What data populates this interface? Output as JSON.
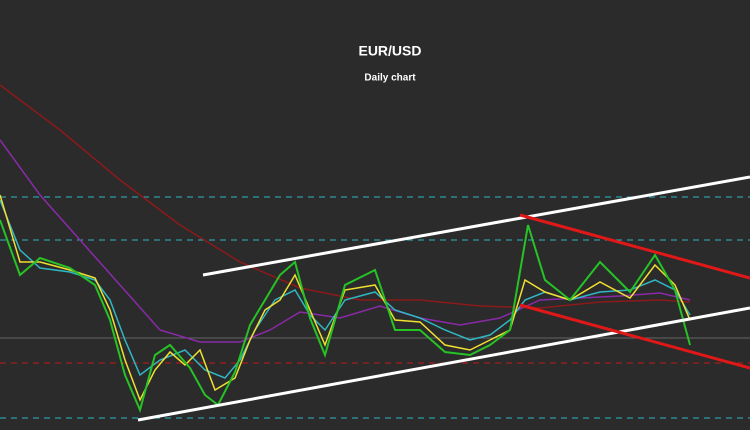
{
  "chart_data": {
    "type": "candlestick",
    "title": "EUR/USD",
    "subtitle": "Daily chart"
  }
}
